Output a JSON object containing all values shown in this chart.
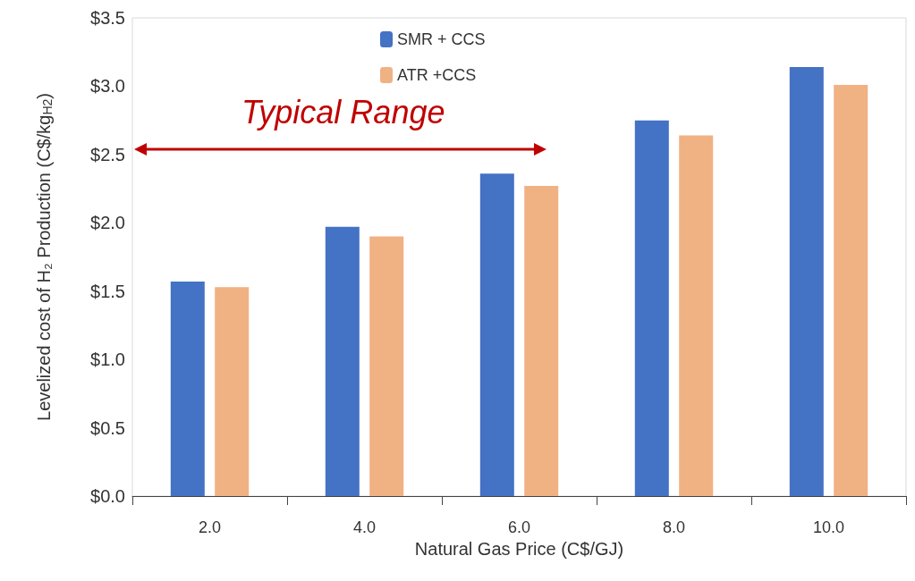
{
  "chart_data": {
    "type": "bar",
    "xlabel": "Natural Gas Price (C$/GJ)",
    "ylabel": "Levelized cost of H₂ Production (C$/kg$_{H2}$)",
    "categories": [
      "2.0",
      "4.0",
      "6.0",
      "8.0",
      "10.0"
    ],
    "series": [
      {
        "name": "SMR + CCS",
        "color": "#4472c4",
        "values": [
          1.57,
          1.97,
          2.36,
          2.75,
          3.14
        ]
      },
      {
        "name": "ATR +CCS",
        "color": "#f0b183",
        "values": [
          1.53,
          1.9,
          2.27,
          2.64,
          3.01
        ]
      }
    ],
    "ylim": [
      0,
      3.5
    ],
    "yticks": [
      {
        "value": 0,
        "label": "$0.0"
      },
      {
        "value": 0.5,
        "label": "$0.5"
      },
      {
        "value": 1,
        "label": "$1.0"
      },
      {
        "value": 1.5,
        "label": "$1.5"
      },
      {
        "value": 2,
        "label": "$2.0"
      },
      {
        "value": 2.5,
        "label": "$2.5"
      },
      {
        "value": 3,
        "label": "$3.0"
      },
      {
        "value": 3.5,
        "label": "$3.5"
      }
    ],
    "annotations": [
      "Typical Range"
    ],
    "legend": "top",
    "grid": false
  }
}
